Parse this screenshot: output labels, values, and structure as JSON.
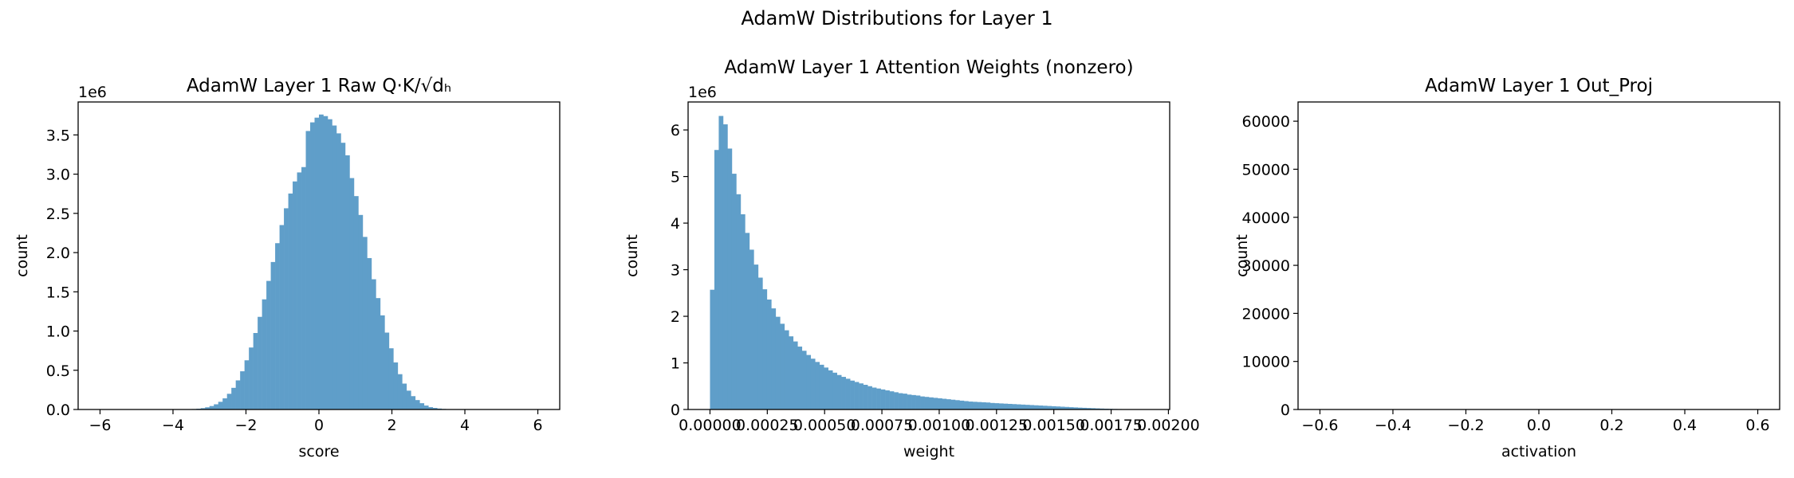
{
  "figure": {
    "suptitle": "AdamW Distributions for Layer 1"
  },
  "style": {
    "bar_color": "#5f9ec9",
    "bar_opacity": 1.0
  },
  "chart_data": [
    {
      "type": "bar",
      "title": "AdamW Layer 1 Raw Q·K/√dₕ",
      "xlabel": "score",
      "ylabel": "count",
      "offset_text": "1e6",
      "scale": 1000000,
      "xlim": [
        -6.6,
        6.6
      ],
      "ylim": [
        0,
        3.92
      ],
      "xticks": [
        -6,
        -4,
        -2,
        0,
        2,
        4,
        6
      ],
      "xtick_labels": [
        "−6",
        "−4",
        "−2",
        "0",
        "2",
        "4",
        "6"
      ],
      "yticks": [
        0,
        0.5,
        1.0,
        1.5,
        2.0,
        2.5,
        3.0,
        3.5
      ],
      "ytick_labels": [
        "0.0",
        "0.5",
        "1.0",
        "1.5",
        "2.0",
        "2.5",
        "3.0",
        "3.5"
      ],
      "bin_start": -6.0,
      "bin_end": 6.0,
      "values": [
        0,
        0,
        0,
        0,
        0,
        0,
        0,
        0,
        0,
        0,
        0,
        0,
        0,
        0,
        0,
        0,
        0,
        0,
        0.001,
        0.002,
        0.003,
        0.006,
        0.01,
        0.017,
        0.028,
        0.044,
        0.066,
        0.098,
        0.142,
        0.2,
        0.276,
        0.371,
        0.487,
        0.627,
        0.79,
        0.975,
        1.181,
        1.404,
        1.639,
        1.88,
        2.12,
        2.351,
        2.565,
        2.753,
        2.907,
        3.022,
        3.09,
        3.55,
        3.66,
        3.72,
        3.76,
        3.74,
        3.7,
        3.62,
        3.52,
        3.4,
        3.24,
        2.95,
        2.72,
        2.48,
        2.2,
        1.93,
        1.66,
        1.42,
        1.2,
        0.98,
        0.78,
        0.6,
        0.45,
        0.33,
        0.24,
        0.17,
        0.12,
        0.08,
        0.05,
        0.03,
        0.02,
        0.012,
        0.007,
        0.004,
        0.002,
        0.001,
        0,
        0,
        0,
        0,
        0,
        0,
        0,
        0,
        0,
        0,
        0,
        0,
        0,
        0,
        0,
        0,
        0,
        0
      ]
    },
    {
      "type": "bar",
      "title": "AdamW Layer 1 Attention Weights (nonzero)",
      "xlabel": "weight",
      "ylabel": "count",
      "offset_text": "1e6",
      "scale": 1000000,
      "xlim": [
        -9.55e-05,
        0.0020055
      ],
      "ylim": [
        0,
        6.6
      ],
      "xticks": [
        0,
        0.00025,
        0.0005,
        0.00075,
        0.001,
        0.00125,
        0.0015,
        0.00175,
        0.002
      ],
      "xtick_labels": [
        "0.00000",
        "0.00025",
        "0.00050",
        "0.00075",
        "0.00100",
        "0.00125",
        "0.00150",
        "0.00175",
        "0.00200"
      ],
      "yticks": [
        0,
        1,
        2,
        3,
        4,
        5,
        6
      ],
      "ytick_labels": [
        "0",
        "1",
        "2",
        "3",
        "4",
        "5",
        "6"
      ],
      "bin_start": 0.0,
      "bin_end": 0.00191,
      "values": [
        2.57,
        5.57,
        6.3,
        6.12,
        5.6,
        5.06,
        4.62,
        4.19,
        3.79,
        3.43,
        3.11,
        2.83,
        2.58,
        2.36,
        2.17,
        1.99,
        1.84,
        1.7,
        1.57,
        1.46,
        1.35,
        1.26,
        1.17,
        1.09,
        1.02,
        0.96,
        0.9,
        0.84,
        0.79,
        0.74,
        0.7,
        0.66,
        0.62,
        0.59,
        0.56,
        0.53,
        0.5,
        0.47,
        0.45,
        0.43,
        0.41,
        0.39,
        0.37,
        0.35,
        0.34,
        0.32,
        0.31,
        0.3,
        0.28,
        0.27,
        0.26,
        0.25,
        0.24,
        0.23,
        0.22,
        0.21,
        0.2,
        0.19,
        0.18,
        0.17,
        0.165,
        0.16,
        0.155,
        0.15,
        0.14,
        0.135,
        0.13,
        0.125,
        0.12,
        0.115,
        0.11,
        0.105,
        0.1,
        0.095,
        0.09,
        0.085,
        0.08,
        0.075,
        0.07,
        0.065,
        0.06,
        0.055,
        0.05,
        0.045,
        0.04,
        0.036,
        0.032,
        0.028,
        0.024,
        0.02,
        0.017,
        0.014,
        0.011,
        0.009,
        0.007,
        0.005,
        0.004,
        0.003,
        0.002,
        0.001
      ]
    },
    {
      "type": "bar",
      "title": "AdamW Layer 1 Out_Proj",
      "xlabel": "activation",
      "ylabel": "count",
      "offset_text": "",
      "scale": 1,
      "xlim": [
        -0.66,
        0.66
      ],
      "ylim": [
        0,
        64000
      ],
      "xticks": [
        -0.6,
        -0.4,
        -0.2,
        0,
        0.2,
        0.4,
        0.6
      ],
      "xtick_labels": [
        "−0.6",
        "−0.4",
        "−0.2",
        "0.0",
        "0.2",
        "0.4",
        "0.6"
      ],
      "yticks": [
        0,
        10000,
        20000,
        30000,
        40000,
        50000,
        60000
      ],
      "ytick_labels": [
        "0",
        "10000",
        "20000",
        "30000",
        "40000",
        "50000",
        "60000"
      ],
      "bin_start": -0.6,
      "bin_end": 0.6,
      "values": [
        0,
        0,
        0,
        0,
        0,
        0,
        0,
        0,
        0,
        0,
        0,
        0,
        0,
        0,
        0,
        0,
        0,
        0,
        0,
        0,
        0,
        0,
        0,
        0,
        0,
        0,
        0,
        0,
        0,
        0,
        0,
        0,
        0,
        0,
        0,
        0,
        0,
        0,
        0,
        0,
        0,
        0,
        0,
        0,
        0,
        0,
        0,
        0,
        0,
        0,
        0,
        0,
        0,
        0,
        0,
        0,
        0,
        0,
        0,
        0,
        0,
        0,
        0,
        0,
        0,
        0,
        0,
        0,
        0,
        0,
        0,
        0,
        0,
        0,
        0,
        0,
        0,
        0,
        0,
        0,
        0,
        0,
        0,
        0,
        0,
        0,
        0,
        0,
        0,
        0,
        0,
        0,
        0,
        0,
        0,
        0,
        0,
        0,
        0,
        0
      ]
    }
  ],
  "chart_data_note_placeholder": null
}
